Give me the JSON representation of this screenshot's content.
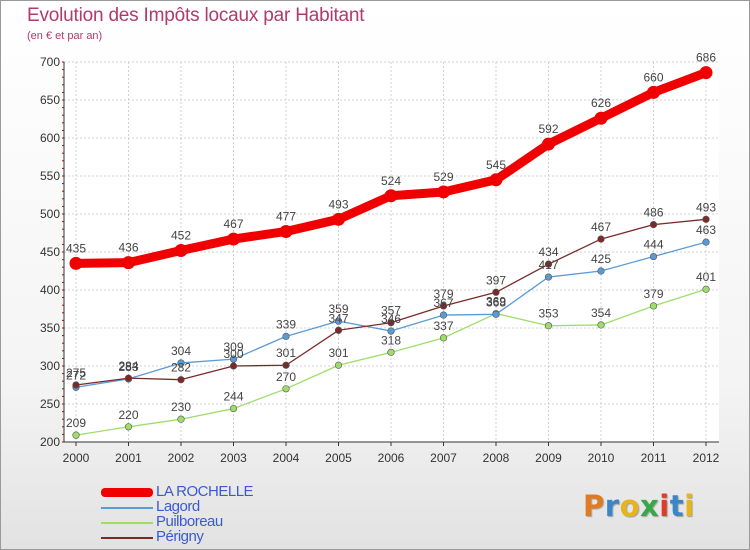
{
  "header": {
    "title": "Evolution des Impôts locaux par Habitant",
    "subtitle": "(en € et par an)"
  },
  "chart_data": {
    "type": "line",
    "title": "Evolution des Impôts locaux par Habitant",
    "subtitle": "(en € et par an)",
    "xlabel": "",
    "ylabel": "",
    "x": [
      "2000",
      "2001",
      "2002",
      "2003",
      "2004",
      "2005",
      "2006",
      "2007",
      "2008",
      "2009",
      "2010",
      "2011",
      "2012"
    ],
    "ylim": [
      200,
      700
    ],
    "yticks": [
      200,
      250,
      300,
      350,
      400,
      450,
      500,
      550,
      600,
      650,
      700
    ],
    "grid": true,
    "legend_position": "bottom-left",
    "series": [
      {
        "name": "LA ROCHELLE",
        "color": "#f00000",
        "values": [
          435,
          436,
          452,
          467,
          477,
          493,
          524,
          529,
          545,
          592,
          626,
          660,
          686
        ]
      },
      {
        "name": "Lagord",
        "color": "#5b9bd5",
        "values": [
          272,
          283,
          304,
          309,
          339,
          359,
          346,
          367,
          368,
          417,
          425,
          444,
          463
        ]
      },
      {
        "name": "Puilboreau",
        "color": "#9edd6a",
        "values": [
          209,
          220,
          230,
          244,
          270,
          301,
          318,
          337,
          369,
          353,
          354,
          379,
          401
        ]
      },
      {
        "name": "Périgny",
        "color": "#7b2a2a",
        "values": [
          275,
          284,
          282,
          300,
          301,
          347,
          357,
          379,
          397,
          434,
          467,
          486,
          493
        ]
      }
    ]
  },
  "branding": {
    "letters": [
      "P",
      "r",
      "o",
      "x",
      "i",
      "t",
      "i"
    ],
    "colors": [
      "#e07b22",
      "#3b86c8",
      "#e6b51c",
      "#3aa64a",
      "#e23a2a",
      "#3b86c8",
      "#e6b51c"
    ]
  }
}
